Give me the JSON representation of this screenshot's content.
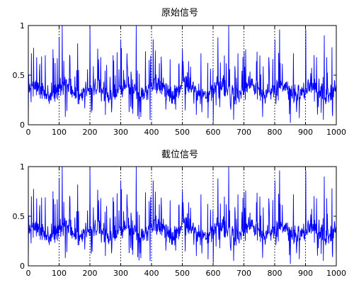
{
  "chart_data": [
    {
      "type": "line",
      "title": "原始信号",
      "xlim": [
        0,
        1000
      ],
      "ylim": [
        0,
        1
      ],
      "xticks": [
        0,
        100,
        200,
        300,
        400,
        500,
        600,
        700,
        800,
        900,
        1000
      ],
      "yticks": [
        0,
        0.5,
        1
      ],
      "xtick_labels": [
        "0",
        "100",
        "200",
        "300",
        "400",
        "500",
        "600",
        "700",
        "800",
        "900",
        "1000"
      ],
      "ytick_labels": [
        "0",
        "0.5",
        "1"
      ],
      "grid": "x-dotted",
      "color": "#0000ff",
      "signal": {
        "n_points": 1000,
        "typical_range": [
          0.2,
          0.5
        ],
        "peaks": [
          {
            "x": 10,
            "y": 0.72
          },
          {
            "x": 55,
            "y": 0.7
          },
          {
            "x": 80,
            "y": 0.76
          },
          {
            "x": 100,
            "y": 0.88
          },
          {
            "x": 110,
            "y": 1.0
          },
          {
            "x": 135,
            "y": 0.68
          },
          {
            "x": 160,
            "y": 0.82
          },
          {
            "x": 200,
            "y": 0.97
          },
          {
            "x": 228,
            "y": 0.66
          },
          {
            "x": 275,
            "y": 0.7
          },
          {
            "x": 300,
            "y": 0.86
          },
          {
            "x": 320,
            "y": 0.72
          },
          {
            "x": 350,
            "y": 1.0
          },
          {
            "x": 380,
            "y": 0.74
          },
          {
            "x": 405,
            "y": 0.86
          },
          {
            "x": 425,
            "y": 0.62
          },
          {
            "x": 460,
            "y": 0.66
          },
          {
            "x": 500,
            "y": 0.76
          },
          {
            "x": 520,
            "y": 0.64
          },
          {
            "x": 560,
            "y": 0.72
          },
          {
            "x": 600,
            "y": 0.86
          },
          {
            "x": 615,
            "y": 0.88
          },
          {
            "x": 650,
            "y": 1.0
          },
          {
            "x": 680,
            "y": 0.72
          },
          {
            "x": 705,
            "y": 0.76
          },
          {
            "x": 740,
            "y": 0.64
          },
          {
            "x": 780,
            "y": 0.68
          },
          {
            "x": 800,
            "y": 0.86
          },
          {
            "x": 815,
            "y": 0.96
          },
          {
            "x": 860,
            "y": 0.72
          },
          {
            "x": 900,
            "y": 0.96
          },
          {
            "x": 935,
            "y": 0.68
          },
          {
            "x": 960,
            "y": 0.9
          },
          {
            "x": 985,
            "y": 0.78
          }
        ],
        "dips": [
          {
            "x": 0,
            "y": 0.02
          },
          {
            "x": 120,
            "y": 0.08
          },
          {
            "x": 250,
            "y": 0.1
          },
          {
            "x": 395,
            "y": 0.05
          },
          {
            "x": 545,
            "y": 0.1
          },
          {
            "x": 600,
            "y": 0.03
          },
          {
            "x": 760,
            "y": 0.08
          },
          {
            "x": 850,
            "y": 0.02
          },
          {
            "x": 1000,
            "y": 0.05
          }
        ]
      }
    },
    {
      "type": "line",
      "title": "截位信号",
      "xlim": [
        0,
        1000
      ],
      "ylim": [
        0,
        1
      ],
      "xticks": [
        0,
        100,
        200,
        300,
        400,
        500,
        600,
        700,
        800,
        900,
        1000
      ],
      "yticks": [
        0,
        0.5,
        1
      ],
      "xtick_labels": [
        "0",
        "100",
        "200",
        "300",
        "400",
        "500",
        "600",
        "700",
        "800",
        "900",
        "1000"
      ],
      "ytick_labels": [
        "0",
        "0.5",
        "1"
      ],
      "grid": "x-dotted",
      "color": "#0000ff",
      "signal": {
        "n_points": 1000,
        "typical_range": [
          0.2,
          0.5
        ],
        "peaks": [
          {
            "x": 10,
            "y": 0.7
          },
          {
            "x": 55,
            "y": 0.69
          },
          {
            "x": 80,
            "y": 0.75
          },
          {
            "x": 100,
            "y": 0.88
          },
          {
            "x": 110,
            "y": 1.0
          },
          {
            "x": 135,
            "y": 0.68
          },
          {
            "x": 160,
            "y": 0.82
          },
          {
            "x": 200,
            "y": 0.97
          },
          {
            "x": 228,
            "y": 0.66
          },
          {
            "x": 275,
            "y": 0.69
          },
          {
            "x": 300,
            "y": 0.86
          },
          {
            "x": 320,
            "y": 0.72
          },
          {
            "x": 350,
            "y": 1.0
          },
          {
            "x": 380,
            "y": 0.74
          },
          {
            "x": 405,
            "y": 0.86
          },
          {
            "x": 425,
            "y": 0.62
          },
          {
            "x": 460,
            "y": 0.66
          },
          {
            "x": 500,
            "y": 0.76
          },
          {
            "x": 520,
            "y": 0.64
          },
          {
            "x": 560,
            "y": 0.72
          },
          {
            "x": 600,
            "y": 0.86
          },
          {
            "x": 615,
            "y": 0.88
          },
          {
            "x": 650,
            "y": 1.0
          },
          {
            "x": 680,
            "y": 0.72
          },
          {
            "x": 705,
            "y": 0.76
          },
          {
            "x": 740,
            "y": 0.64
          },
          {
            "x": 780,
            "y": 0.68
          },
          {
            "x": 800,
            "y": 0.86
          },
          {
            "x": 815,
            "y": 0.96
          },
          {
            "x": 860,
            "y": 0.72
          },
          {
            "x": 900,
            "y": 0.96
          },
          {
            "x": 935,
            "y": 0.68
          },
          {
            "x": 960,
            "y": 0.9
          },
          {
            "x": 985,
            "y": 0.78
          }
        ],
        "dips": [
          {
            "x": 0,
            "y": 0.02
          },
          {
            "x": 120,
            "y": 0.08
          },
          {
            "x": 250,
            "y": 0.1
          },
          {
            "x": 395,
            "y": 0.05
          },
          {
            "x": 545,
            "y": 0.1
          },
          {
            "x": 600,
            "y": 0.03
          },
          {
            "x": 760,
            "y": 0.08
          },
          {
            "x": 850,
            "y": 0.02
          },
          {
            "x": 1000,
            "y": 0.05
          }
        ]
      }
    }
  ]
}
